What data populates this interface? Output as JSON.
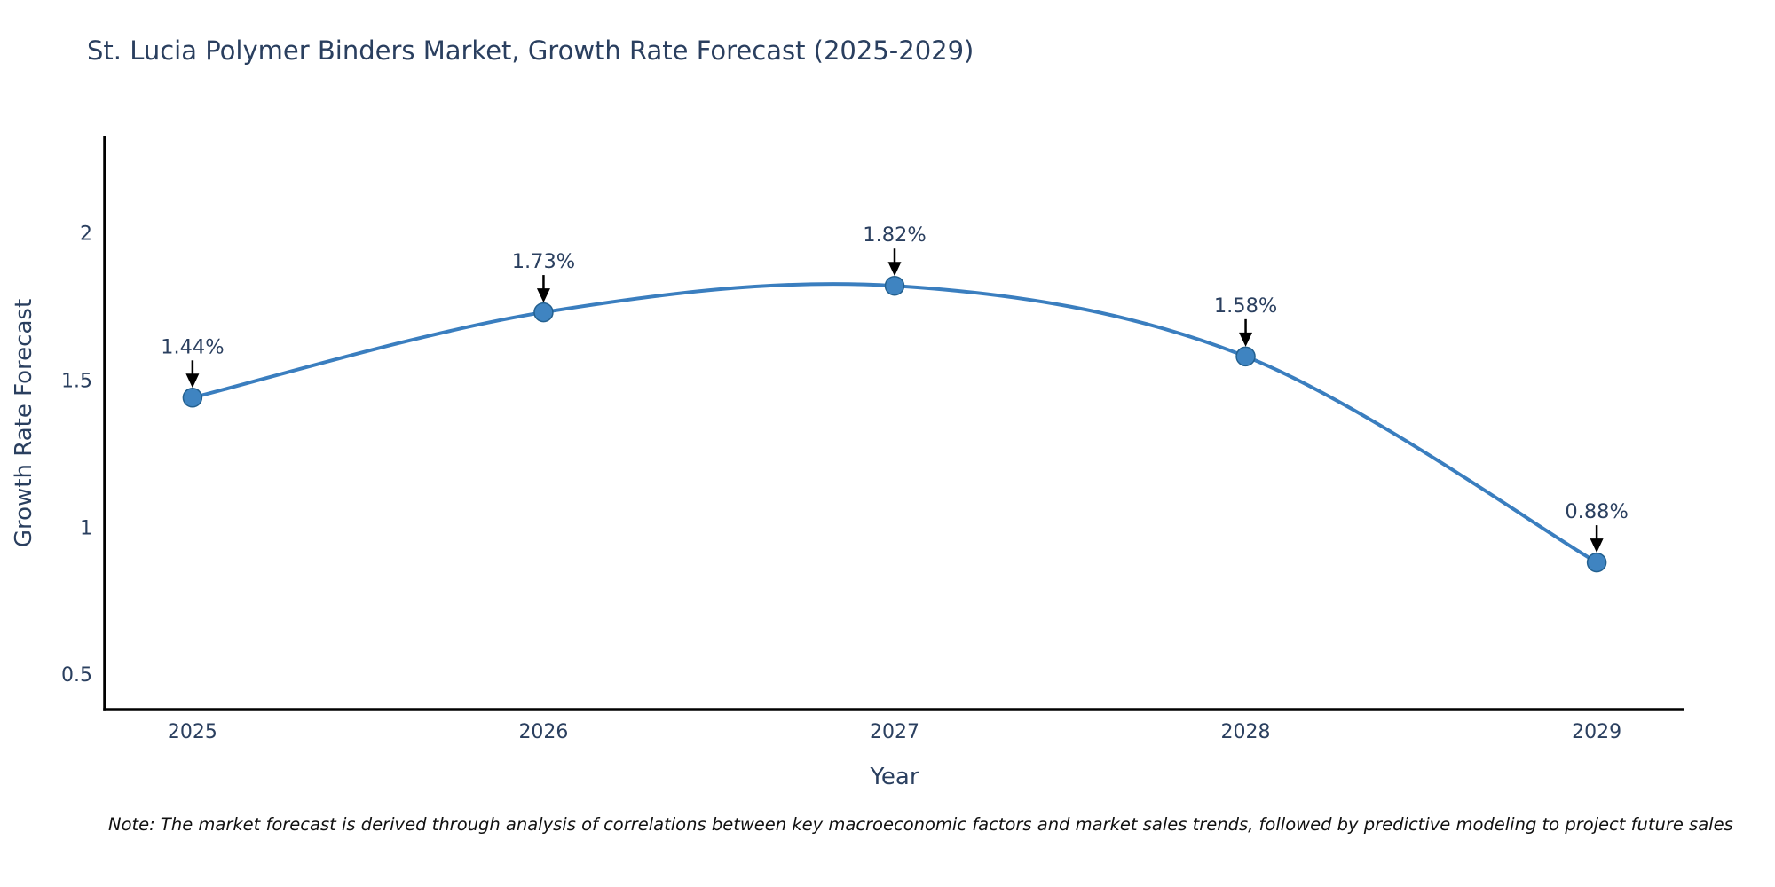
{
  "page": {
    "note": "Note: The market forecast is derived through analysis of correlations between key macroeconomic factors and market sales trends, followed by predictive modeling to project future sales"
  },
  "chart_data": {
    "type": "line",
    "title": "St. Lucia Polymer Binders Market, Growth Rate Forecast (2025-2029)",
    "xlabel": "Year",
    "ylabel": "Growth Rate Forecast",
    "x": [
      2025,
      2026,
      2027,
      2028,
      2029
    ],
    "values": [
      1.44,
      1.73,
      1.82,
      1.58,
      0.88
    ],
    "point_labels": [
      "1.44%",
      "1.73%",
      "1.82%",
      "1.58%",
      "0.88%"
    ],
    "xticks": [
      2025,
      2026,
      2027,
      2028,
      2029
    ],
    "xtick_labels": [
      "2025",
      "2026",
      "2027",
      "2028",
      "2029"
    ],
    "yticks": [
      0.5,
      1,
      1.5,
      2
    ],
    "ytick_labels": [
      "0.5",
      "1",
      "1.5",
      "2"
    ],
    "xlim": [
      2024.75,
      2029.25
    ],
    "ylim": [
      0.38,
      2.33
    ],
    "line_shape": "spline",
    "grid": false,
    "legend": "none",
    "colors": {
      "line": "#3a7ebf",
      "marker_fill": "#3f84c1",
      "marker_edge": "#23608f",
      "axis": "#000000",
      "text": "#2a3f5f",
      "annotation_text": "#2a3f5f",
      "annotation_arrow": "#000000",
      "background": "#ffffff"
    }
  }
}
